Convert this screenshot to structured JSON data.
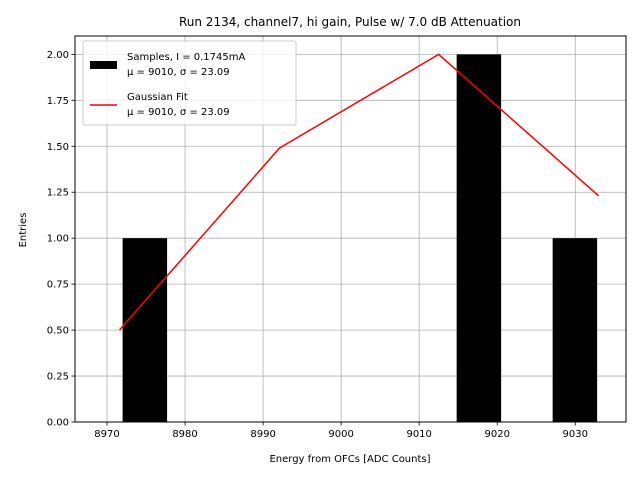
{
  "chart_data": {
    "type": "bar",
    "title": "Run 2134, channel7, hi gain, Pulse w/ 7.0 dB Attenuation",
    "xlabel": "Energy from OFCs [ADC Counts]",
    "ylabel": "Entries",
    "xlim": [
      8965.9,
      9036.5
    ],
    "ylim": [
      0,
      2.1
    ],
    "grid": true,
    "legend_position": "top-left",
    "xticks": [
      8970,
      8980,
      8990,
      9000,
      9010,
      9020,
      9030
    ],
    "xtick_labels": [
      "8970",
      "8980",
      "8990",
      "9000",
      "9010",
      "9020",
      "9030"
    ],
    "yticks": [
      0,
      0.25,
      0.5,
      0.75,
      1.0,
      1.25,
      1.5,
      1.75,
      2.0
    ],
    "ytick_labels": [
      "0.00",
      "0.25",
      "0.50",
      "0.75",
      "1.00",
      "1.25",
      "1.50",
      "1.75",
      "2.00"
    ],
    "series": [
      {
        "kind": "histogram",
        "color": "#000000",
        "bins": [
          {
            "x0": 8972.0,
            "x1": 8977.7,
            "value": 1
          },
          {
            "x0": 9014.8,
            "x1": 9020.5,
            "value": 2
          },
          {
            "x0": 9027.1,
            "x1": 9032.8,
            "value": 1
          }
        ]
      },
      {
        "kind": "line",
        "color": "#ff0000",
        "x": [
          8971.6,
          8992.1,
          9012.5,
          9033.0
        ],
        "y": [
          0.5,
          1.49,
          2.0,
          1.23
        ]
      }
    ],
    "legend": [
      {
        "swatch": "bar",
        "color": "#000000",
        "line1": "Samples, I = 0.1745mA",
        "line2": "μ = 9010, σ = 23.09"
      },
      {
        "swatch": "line",
        "color": "#ff0000",
        "line1": "Gaussian Fit",
        "line2": "μ = 9010, σ = 23.09"
      }
    ]
  }
}
